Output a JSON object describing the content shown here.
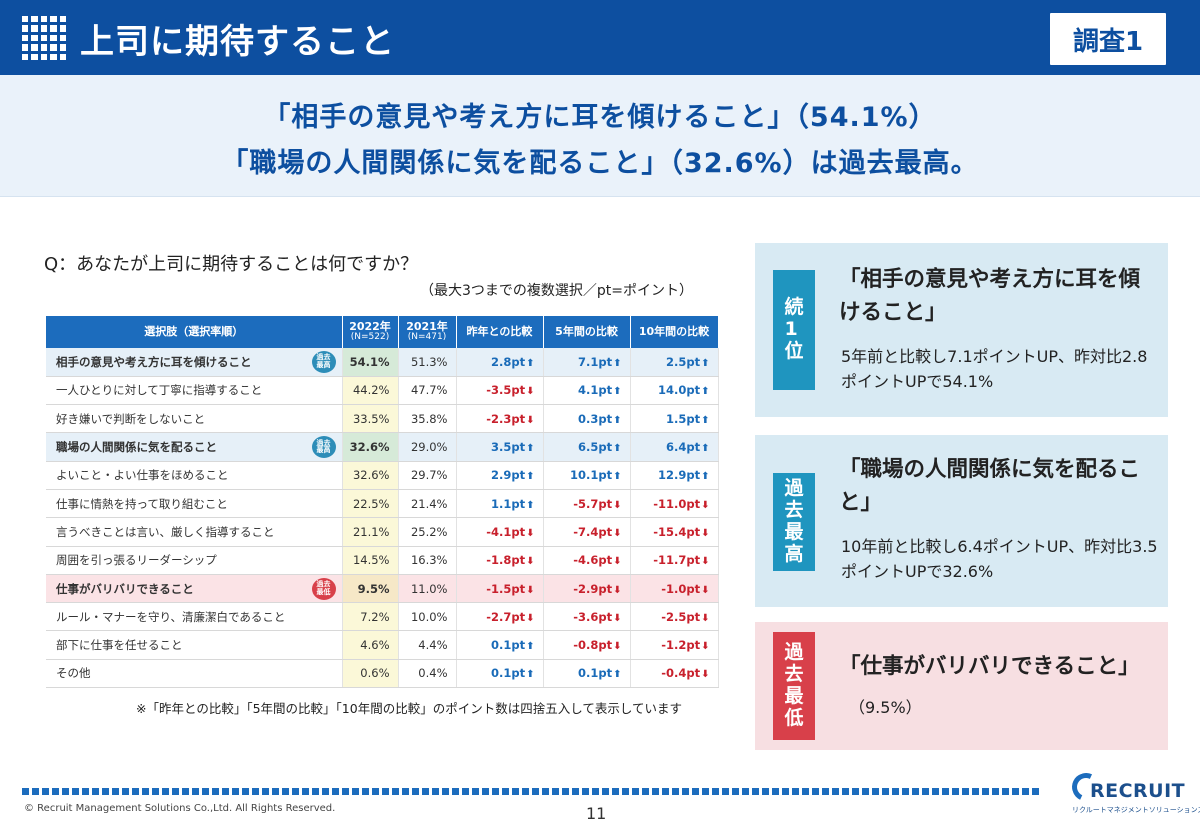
{
  "header": {
    "title": "上司に期待すること",
    "badge": "調査1"
  },
  "headline": {
    "line1": "「相手の意見や考え方に耳を傾けること」（54.1%）",
    "line2": "「職場の人間関係に気を配ること」（32.6%）は過去最高。"
  },
  "question": "Q：あなたが上司に期待することは何ですか？",
  "question_note": "（最大3つまでの複数選択／pt=ポイント）",
  "table": {
    "columns": [
      {
        "label": "選択肢（選択率順）",
        "sub": ""
      },
      {
        "label": "2022年",
        "sub": "(N=522)"
      },
      {
        "label": "2021年",
        "sub": "(N=471)"
      },
      {
        "label": "昨年との比較",
        "sub": ""
      },
      {
        "label": "5年間の比較",
        "sub": ""
      },
      {
        "label": "10年間の比較",
        "sub": ""
      }
    ],
    "rows": [
      {
        "label": "相手の意見や考え方に耳を傾けること",
        "tag": "過去最高",
        "tag_color": "blue",
        "y2022": "54.1%",
        "y2021": "51.3%",
        "d1": "2.8pt",
        "d5": "7.1pt",
        "d10": "2.5pt"
      },
      {
        "label": "一人ひとりに対して丁寧に指導すること",
        "tag": "",
        "y2022": "44.2%",
        "y2021": "47.7%",
        "d1": "-3.5pt",
        "d5": "4.1pt",
        "d10": "14.0pt"
      },
      {
        "label": "好き嫌いで判断をしないこと",
        "tag": "",
        "y2022": "33.5%",
        "y2021": "35.8%",
        "d1": "-2.3pt",
        "d5": "0.3pt",
        "d10": "1.5pt"
      },
      {
        "label": "職場の人間関係に気を配ること",
        "tag": "過去最高",
        "tag_color": "blue",
        "y2022": "32.6%",
        "y2021": "29.0%",
        "d1": "3.5pt",
        "d5": "6.5pt",
        "d10": "6.4pt"
      },
      {
        "label": "よいこと・よい仕事をほめること",
        "tag": "",
        "y2022": "32.6%",
        "y2021": "29.7%",
        "d1": "2.9pt",
        "d5": "10.1pt",
        "d10": "12.9pt"
      },
      {
        "label": "仕事に情熱を持って取り組むこと",
        "tag": "",
        "y2022": "22.5%",
        "y2021": "21.4%",
        "d1": "1.1pt",
        "d5": "-5.7pt",
        "d10": "-11.0pt"
      },
      {
        "label": "言うべきことは言い、厳しく指導すること",
        "tag": "",
        "y2022": "21.1%",
        "y2021": "25.2%",
        "d1": "-4.1pt",
        "d5": "-7.4pt",
        "d10": "-15.4pt"
      },
      {
        "label": "周囲を引っ張るリーダーシップ",
        "tag": "",
        "y2022": "14.5%",
        "y2021": "16.3%",
        "d1": "-1.8pt",
        "d5": "-4.6pt",
        "d10": "-11.7pt"
      },
      {
        "label": "仕事がバリバリできること",
        "tag": "過去最低",
        "tag_color": "red",
        "y2022": "9.5%",
        "y2021": "11.0%",
        "d1": "-1.5pt",
        "d5": "-2.9pt",
        "d10": "-1.0pt"
      },
      {
        "label": "ルール・マナーを守り、清廉潔白であること",
        "tag": "",
        "y2022": "7.2%",
        "y2021": "10.0%",
        "d1": "-2.7pt",
        "d5": "-3.6pt",
        "d10": "-2.5pt"
      },
      {
        "label": "部下に仕事を任せること",
        "tag": "",
        "y2022": "4.6%",
        "y2021": "4.4%",
        "d1": "0.1pt",
        "d5": "-0.8pt",
        "d10": "-1.2pt"
      },
      {
        "label": "その他",
        "tag": "",
        "y2022": "0.6%",
        "y2021": "0.4%",
        "d1": "0.1pt",
        "d5": "0.1pt",
        "d10": "-0.4pt"
      }
    ]
  },
  "footnote": "※「昨年との比較」「5年間の比較」「10年間の比較」のポイント数は四捨五入して表示しています",
  "boxes": [
    {
      "label": "続1位",
      "head": "「相手の意見や考え方に耳を傾けること」",
      "desc": "5年前と比較し7.1ポイントUP、昨対比2.8ポイントUPで54.1%"
    },
    {
      "label": "過去最高",
      "head": "「職場の人間関係に気を配ること」",
      "desc": "10年前と比較し6.4ポイントUP、昨対比3.5ポイントUPで32.6%"
    },
    {
      "label": "過去最低",
      "head": "「仕事がバリバリできること」",
      "desc": "（9.5%）"
    }
  ],
  "footer": {
    "copyright": "© Recruit Management Solutions Co.,Ltd. All Rights Reserved.",
    "page": "11",
    "logo": "RECRUIT",
    "logo_sub": "リクルートマネジメントソリューションズ"
  },
  "colors": {
    "primary": "#0d4fa0",
    "table_header": "#1c6cbd",
    "positive": "#1a6bb8",
    "negative": "#c8202c",
    "high_tag": "#2d8db8",
    "low_tag": "#d8404a"
  }
}
